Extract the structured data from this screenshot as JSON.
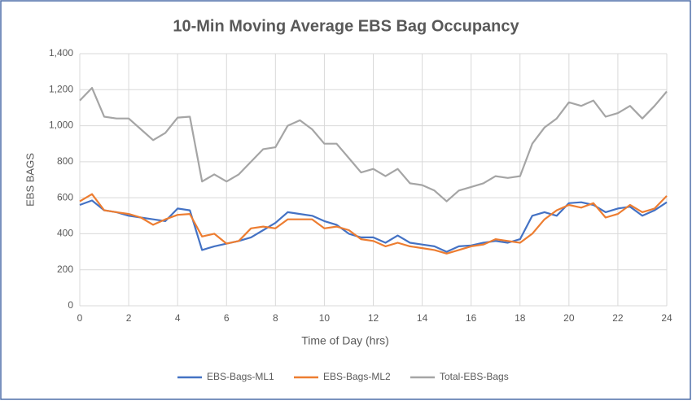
{
  "chart_data": {
    "type": "line",
    "title": "10-Min Moving Average EBS Bag Occupancy",
    "x_label": "Time of Day (hrs)",
    "y_label": "EBS BAGS",
    "x": [
      0,
      0.5,
      1,
      1.5,
      2,
      2.5,
      3,
      3.5,
      4,
      4.5,
      5,
      5.5,
      6,
      6.5,
      7,
      7.5,
      8,
      8.5,
      9,
      9.5,
      10,
      10.5,
      11,
      11.5,
      12,
      12.5,
      13,
      13.5,
      14,
      14.5,
      15,
      15.5,
      16,
      16.5,
      17,
      17.5,
      18,
      18.5,
      19,
      19.5,
      20,
      20.5,
      21,
      21.5,
      22,
      22.5,
      23,
      23.5,
      24
    ],
    "series": [
      {
        "name": "EBS-Bags-ML1",
        "color": "#4472c4",
        "values": [
          560,
          585,
          530,
          520,
          500,
          490,
          480,
          470,
          540,
          530,
          310,
          330,
          345,
          360,
          380,
          420,
          460,
          520,
          510,
          500,
          470,
          450,
          400,
          380,
          380,
          350,
          390,
          350,
          340,
          330,
          300,
          330,
          335,
          350,
          360,
          350,
          370,
          500,
          520,
          500,
          570,
          575,
          560,
          520,
          540,
          550,
          500,
          530,
          575
        ]
      },
      {
        "name": "EBS-Bags-ML2",
        "color": "#ed7d31",
        "values": [
          580,
          620,
          530,
          520,
          510,
          490,
          450,
          480,
          505,
          510,
          385,
          400,
          345,
          360,
          430,
          440,
          430,
          480,
          480,
          480,
          430,
          440,
          420,
          370,
          360,
          330,
          350,
          330,
          320,
          310,
          290,
          310,
          330,
          340,
          370,
          360,
          350,
          400,
          480,
          530,
          560,
          545,
          570,
          490,
          510,
          560,
          520,
          540,
          610
        ]
      },
      {
        "name": "Total-EBS-Bags",
        "color": "#a5a5a5",
        "values": [
          1140,
          1210,
          1050,
          1040,
          1040,
          980,
          920,
          960,
          1045,
          1050,
          690,
          730,
          690,
          730,
          800,
          870,
          880,
          1000,
          1030,
          980,
          900,
          900,
          820,
          740,
          760,
          720,
          760,
          680,
          670,
          640,
          580,
          640,
          660,
          680,
          720,
          710,
          720,
          900,
          990,
          1040,
          1130,
          1110,
          1140,
          1050,
          1070,
          1110,
          1040,
          1110,
          1190
        ]
      }
    ],
    "xlim": [
      0,
      24
    ],
    "xticks": [
      0,
      2,
      4,
      6,
      8,
      10,
      12,
      14,
      16,
      18,
      20,
      22,
      24
    ],
    "ylim": [
      0,
      1400
    ],
    "yticks": [
      0,
      200,
      400,
      600,
      800,
      {
        "value": 1000,
        "label": "1,000"
      },
      {
        "value": 1200,
        "label": "1,200"
      },
      {
        "value": 1400,
        "label": "1,400"
      }
    ],
    "grid": true,
    "legend": "bottom"
  }
}
